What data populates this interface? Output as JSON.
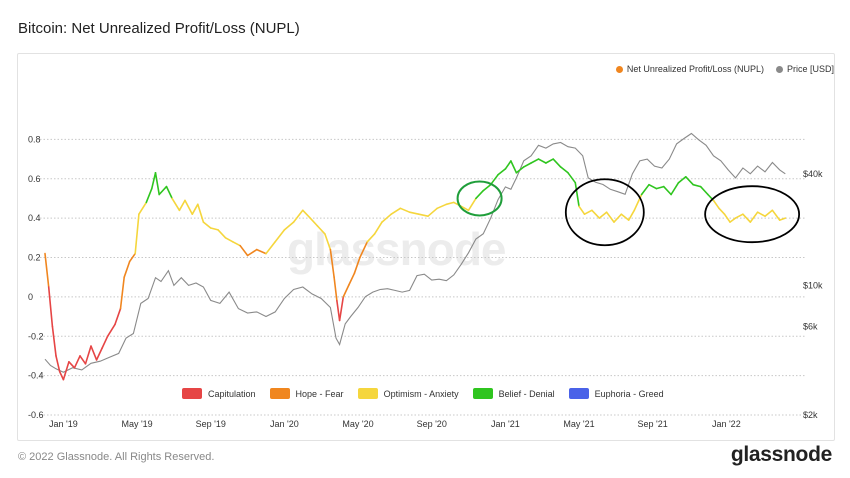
{
  "title": "Bitcoin: Net Unrealized Profit/Loss (NUPL)",
  "footer": {
    "copyright": "© 2022 Glassnode. All Rights Reserved.",
    "brand": "glassnode"
  },
  "watermark": "glassnode",
  "colors": {
    "capitulation": "#e64545",
    "hope": "#f0861f",
    "optimism": "#f5d63d",
    "belief": "#2fc51f",
    "euphoria": "#4a62e8",
    "price": "#8a8a8a",
    "nupl_marker": "#f0861f",
    "annotation_green": "#1f9e3a",
    "annotation_black": "#000000"
  },
  "chart_data": {
    "type": "line",
    "title": "Bitcoin: Net Unrealized Profit/Loss (NUPL)",
    "legend_top": [
      {
        "label": "Net Unrealized Profit/Loss (NUPL)",
        "color": "#f0861f"
      },
      {
        "label": "Price [USD]",
        "color": "#8a8a8a"
      }
    ],
    "legend_bottom": [
      {
        "label": "Capitulation",
        "color": "#e64545"
      },
      {
        "label": "Hope - Fear",
        "color": "#f0861f"
      },
      {
        "label": "Optimism - Anxiety",
        "color": "#f5d63d"
      },
      {
        "label": "Belief - Denial",
        "color": "#2fc51f"
      },
      {
        "label": "Euphoria - Greed",
        "color": "#4a62e8"
      }
    ],
    "x_ticks": [
      "Jan '19",
      "May '19",
      "Sep '19",
      "Jan '20",
      "May '20",
      "Sep '20",
      "Jan '21",
      "May '21",
      "Sep '21",
      "Jan '22"
    ],
    "x_tick_pos": [
      1,
      5,
      9,
      13,
      17,
      21,
      25,
      29,
      33,
      37
    ],
    "x_range": [
      0,
      41
    ],
    "ylim_left": [
      -0.6,
      1.0
    ],
    "y_ticks_left": [
      -0.6,
      -0.4,
      -0.2,
      0,
      0.2,
      0.4,
      0.6,
      0.8
    ],
    "y_tick_labels_left": [
      "-0.6",
      "-0.4",
      "-0.2",
      "0",
      "0.2",
      "0.4",
      "0.6",
      "0.8"
    ],
    "y_log_right": true,
    "ylim_right": [
      2000,
      100000
    ],
    "y_ticks_right": [
      2000,
      6000,
      10000,
      40000
    ],
    "y_tick_labels_right": [
      "$2k",
      "$6k",
      "$10k",
      "$40k"
    ],
    "zone_thresholds": [
      0,
      0.25,
      0.5,
      0.75
    ],
    "nupl": [
      [
        0,
        0.22
      ],
      [
        0.2,
        0.05
      ],
      [
        0.4,
        -0.15
      ],
      [
        0.6,
        -0.3
      ],
      [
        0.8,
        -0.38
      ],
      [
        1.0,
        -0.42
      ],
      [
        1.3,
        -0.33
      ],
      [
        1.6,
        -0.36
      ],
      [
        1.9,
        -0.3
      ],
      [
        2.2,
        -0.34
      ],
      [
        2.5,
        -0.25
      ],
      [
        2.8,
        -0.32
      ],
      [
        3.1,
        -0.26
      ],
      [
        3.4,
        -0.2
      ],
      [
        3.8,
        -0.14
      ],
      [
        4.1,
        -0.06
      ],
      [
        4.3,
        0.1
      ],
      [
        4.6,
        0.18
      ],
      [
        4.9,
        0.22
      ],
      [
        5.1,
        0.42
      ],
      [
        5.5,
        0.48
      ],
      [
        5.8,
        0.55
      ],
      [
        6.0,
        0.63
      ],
      [
        6.2,
        0.52
      ],
      [
        6.6,
        0.56
      ],
      [
        6.9,
        0.5
      ],
      [
        7.3,
        0.44
      ],
      [
        7.6,
        0.49
      ],
      [
        8.0,
        0.42
      ],
      [
        8.3,
        0.47
      ],
      [
        8.6,
        0.38
      ],
      [
        9.0,
        0.35
      ],
      [
        9.4,
        0.34
      ],
      [
        9.8,
        0.3
      ],
      [
        10.2,
        0.28
      ],
      [
        10.6,
        0.26
      ],
      [
        11.0,
        0.21
      ],
      [
        11.5,
        0.24
      ],
      [
        12.0,
        0.22
      ],
      [
        12.5,
        0.28
      ],
      [
        13.0,
        0.34
      ],
      [
        13.5,
        0.38
      ],
      [
        14.0,
        0.44
      ],
      [
        14.4,
        0.4
      ],
      [
        14.8,
        0.36
      ],
      [
        15.2,
        0.32
      ],
      [
        15.5,
        0.24
      ],
      [
        15.7,
        0.1
      ],
      [
        15.85,
        -0.02
      ],
      [
        16.0,
        -0.12
      ],
      [
        16.2,
        0.0
      ],
      [
        16.5,
        0.06
      ],
      [
        16.8,
        0.12
      ],
      [
        17.1,
        0.2
      ],
      [
        17.5,
        0.28
      ],
      [
        17.9,
        0.32
      ],
      [
        18.3,
        0.38
      ],
      [
        18.8,
        0.42
      ],
      [
        19.3,
        0.45
      ],
      [
        19.8,
        0.43
      ],
      [
        20.3,
        0.42
      ],
      [
        20.8,
        0.41
      ],
      [
        21.3,
        0.45
      ],
      [
        21.8,
        0.47
      ],
      [
        22.2,
        0.48
      ],
      [
        22.6,
        0.46
      ],
      [
        23.0,
        0.44
      ],
      [
        23.4,
        0.5
      ],
      [
        23.8,
        0.54
      ],
      [
        24.2,
        0.57
      ],
      [
        24.6,
        0.62
      ],
      [
        25.0,
        0.65
      ],
      [
        25.3,
        0.69
      ],
      [
        25.6,
        0.63
      ],
      [
        26.0,
        0.66
      ],
      [
        26.4,
        0.68
      ],
      [
        26.8,
        0.7
      ],
      [
        27.2,
        0.68
      ],
      [
        27.6,
        0.7
      ],
      [
        28.0,
        0.66
      ],
      [
        28.4,
        0.63
      ],
      [
        28.8,
        0.58
      ],
      [
        29.0,
        0.46
      ],
      [
        29.3,
        0.42
      ],
      [
        29.7,
        0.44
      ],
      [
        30.1,
        0.4
      ],
      [
        30.5,
        0.43
      ],
      [
        30.9,
        0.38
      ],
      [
        31.3,
        0.42
      ],
      [
        31.7,
        0.39
      ],
      [
        32.0,
        0.44
      ],
      [
        32.4,
        0.52
      ],
      [
        32.8,
        0.57
      ],
      [
        33.2,
        0.55
      ],
      [
        33.6,
        0.56
      ],
      [
        34.0,
        0.52
      ],
      [
        34.4,
        0.58
      ],
      [
        34.8,
        0.61
      ],
      [
        35.2,
        0.57
      ],
      [
        35.6,
        0.56
      ],
      [
        36.0,
        0.52
      ],
      [
        36.3,
        0.49
      ],
      [
        36.6,
        0.45
      ],
      [
        36.9,
        0.42
      ],
      [
        37.2,
        0.38
      ],
      [
        37.5,
        0.4
      ],
      [
        37.9,
        0.42
      ],
      [
        38.3,
        0.38
      ],
      [
        38.7,
        0.43
      ],
      [
        39.1,
        0.41
      ],
      [
        39.5,
        0.44
      ],
      [
        39.9,
        0.39
      ],
      [
        40.2,
        0.4
      ]
    ],
    "price": [
      [
        0,
        4000
      ],
      [
        0.3,
        3700
      ],
      [
        0.6,
        3550
      ],
      [
        1.0,
        3400
      ],
      [
        1.5,
        3600
      ],
      [
        2.0,
        3500
      ],
      [
        2.5,
        3800
      ],
      [
        3.0,
        3900
      ],
      [
        3.5,
        4100
      ],
      [
        4.0,
        4300
      ],
      [
        4.4,
        5200
      ],
      [
        4.8,
        5500
      ],
      [
        5.2,
        8000
      ],
      [
        5.6,
        8500
      ],
      [
        6.0,
        11000
      ],
      [
        6.3,
        10500
      ],
      [
        6.7,
        12000
      ],
      [
        7.0,
        10000
      ],
      [
        7.4,
        11000
      ],
      [
        7.8,
        10000
      ],
      [
        8.2,
        10300
      ],
      [
        8.6,
        9800
      ],
      [
        9.0,
        8300
      ],
      [
        9.5,
        8000
      ],
      [
        10.0,
        9200
      ],
      [
        10.5,
        7500
      ],
      [
        11.0,
        7100
      ],
      [
        11.5,
        7200
      ],
      [
        12.0,
        6800
      ],
      [
        12.5,
        7200
      ],
      [
        13.0,
        8500
      ],
      [
        13.5,
        9500
      ],
      [
        14.0,
        9800
      ],
      [
        14.5,
        9000
      ],
      [
        15.0,
        8500
      ],
      [
        15.5,
        7600
      ],
      [
        15.8,
        5200
      ],
      [
        16.0,
        4800
      ],
      [
        16.3,
        6200
      ],
      [
        16.6,
        6800
      ],
      [
        17.0,
        7600
      ],
      [
        17.4,
        8700
      ],
      [
        17.8,
        9200
      ],
      [
        18.2,
        9500
      ],
      [
        18.6,
        9600
      ],
      [
        19.0,
        9400
      ],
      [
        19.4,
        9200
      ],
      [
        19.8,
        9400
      ],
      [
        20.2,
        11300
      ],
      [
        20.6,
        11500
      ],
      [
        21.0,
        10700
      ],
      [
        21.4,
        10800
      ],
      [
        21.8,
        10600
      ],
      [
        22.2,
        11400
      ],
      [
        22.6,
        13000
      ],
      [
        23.0,
        15000
      ],
      [
        23.4,
        17800
      ],
      [
        23.8,
        19000
      ],
      [
        24.2,
        23000
      ],
      [
        24.6,
        29000
      ],
      [
        25.0,
        34000
      ],
      [
        25.3,
        33000
      ],
      [
        25.6,
        38000
      ],
      [
        26.0,
        47000
      ],
      [
        26.4,
        50000
      ],
      [
        26.8,
        57000
      ],
      [
        27.2,
        55000
      ],
      [
        27.6,
        58000
      ],
      [
        28.0,
        59000
      ],
      [
        28.4,
        56000
      ],
      [
        28.8,
        55000
      ],
      [
        29.2,
        50000
      ],
      [
        29.5,
        38000
      ],
      [
        29.9,
        36000
      ],
      [
        30.3,
        35000
      ],
      [
        30.7,
        33000
      ],
      [
        31.1,
        32000
      ],
      [
        31.5,
        31000
      ],
      [
        31.9,
        40000
      ],
      [
        32.3,
        47000
      ],
      [
        32.7,
        48000
      ],
      [
        33.1,
        44000
      ],
      [
        33.5,
        43000
      ],
      [
        33.9,
        48000
      ],
      [
        34.3,
        58000
      ],
      [
        34.7,
        62000
      ],
      [
        35.1,
        66000
      ],
      [
        35.5,
        61000
      ],
      [
        35.9,
        57000
      ],
      [
        36.3,
        50000
      ],
      [
        36.7,
        47000
      ],
      [
        37.1,
        42000
      ],
      [
        37.5,
        38000
      ],
      [
        37.9,
        43000
      ],
      [
        38.3,
        40000
      ],
      [
        38.7,
        44000
      ],
      [
        39.1,
        41000
      ],
      [
        39.5,
        46000
      ],
      [
        39.9,
        42000
      ],
      [
        40.2,
        40000
      ]
    ]
  }
}
